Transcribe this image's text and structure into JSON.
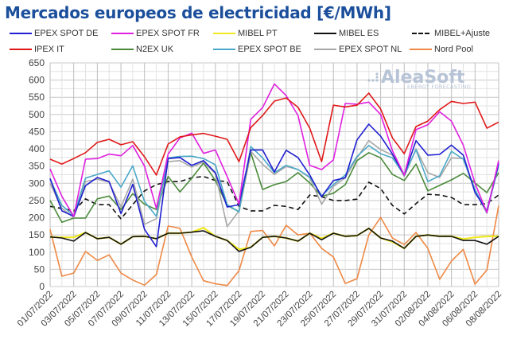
{
  "chart_data": {
    "type": "line",
    "title": "Mercados europeos de electricidad [€/MWh]",
    "xlabel": "",
    "ylabel": "",
    "ylim": [
      0,
      650
    ],
    "yticks": [
      0,
      50,
      100,
      150,
      200,
      250,
      300,
      350,
      400,
      450,
      500,
      550,
      600,
      650
    ],
    "grid": true,
    "legend_position": "top",
    "x": [
      "01/07/2022",
      "02/07/2022",
      "03/07/2022",
      "04/07/2022",
      "05/07/2022",
      "06/07/2022",
      "07/07/2022",
      "08/07/2022",
      "09/07/2022",
      "10/07/2022",
      "11/07/2022",
      "12/07/2022",
      "13/07/2022",
      "14/07/2022",
      "15/07/2022",
      "16/07/2022",
      "17/07/2022",
      "18/07/2022",
      "19/07/2022",
      "20/07/2022",
      "21/07/2022",
      "22/07/2022",
      "23/07/2022",
      "24/07/2022",
      "25/07/2022",
      "26/07/2022",
      "27/07/2022",
      "28/07/2022",
      "29/07/2022",
      "30/07/2022",
      "31/07/2022",
      "01/08/2022",
      "02/08/2022",
      "03/08/2022",
      "04/08/2022",
      "05/08/2022",
      "06/08/2022",
      "07/08/2022",
      "08/08/2022"
    ],
    "xtick_labels": [
      "01/07/2022",
      "03/07/2022",
      "05/07/2022",
      "07/07/2022",
      "09/07/2022",
      "11/07/2022",
      "13/07/2022",
      "15/07/2022",
      "17/07/2022",
      "19/07/2022",
      "21/07/2022",
      "23/07/2022",
      "25/07/2022",
      "27/07/2022",
      "29/07/2022",
      "31/07/2022",
      "02/08/2022",
      "04/08/2022",
      "06/08/2022",
      "08/08/2022"
    ],
    "series": [
      {
        "name": "EPEX SPOT DE",
        "color": "#1f1fd0",
        "dash": false,
        "values": [
          314,
          220,
          204,
          293,
          317,
          305,
          212,
          297,
          166,
          116,
          372,
          375,
          352,
          366,
          331,
          231,
          238,
          397,
          397,
          333,
          396,
          375,
          324,
          261,
          308,
          316,
          426,
          472,
          437,
          385,
          324,
          424,
          382,
          384,
          411,
          382,
          273,
          220,
          358
        ]
      },
      {
        "name": "EPEX SPOT FR",
        "color": "#e020e0",
        "dash": false,
        "values": [
          342,
          262,
          204,
          370,
          372,
          385,
          380,
          410,
          350,
          227,
          385,
          432,
          446,
          387,
          397,
          320,
          240,
          486,
          520,
          589,
          555,
          497,
          352,
          340,
          368,
          532,
          530,
          536,
          500,
          395,
          324,
          456,
          470,
          508,
          481,
          411,
          300,
          215,
          366
        ]
      },
      {
        "name": "MIBEL PT",
        "color": "#f0e820",
        "dash": false,
        "values": [
          144,
          143,
          143,
          157,
          139,
          143,
          123,
          145,
          146,
          139,
          155,
          155,
          158,
          171,
          146,
          134,
          108,
          114,
          143,
          146,
          141,
          132,
          155,
          140,
          155,
          146,
          148,
          169,
          141,
          130,
          111,
          146,
          150,
          146,
          146,
          138,
          143,
          146,
          146
        ]
      },
      {
        "name": "MIBEL ES",
        "color": "#111111",
        "dash": false,
        "values": [
          144,
          141,
          132,
          157,
          139,
          143,
          123,
          145,
          146,
          139,
          155,
          155,
          158,
          162,
          146,
          134,
          102,
          114,
          143,
          146,
          141,
          132,
          155,
          136,
          155,
          146,
          148,
          169,
          141,
          132,
          111,
          146,
          150,
          146,
          146,
          134,
          134,
          123,
          146
        ]
      },
      {
        "name": "MIBEL+Ajuste",
        "color": "#111111",
        "dash": true,
        "values": [
          233,
          227,
          220,
          255,
          238,
          238,
          197,
          238,
          278,
          296,
          305,
          305,
          316,
          320,
          308,
          305,
          233,
          220,
          220,
          236,
          233,
          224,
          266,
          261,
          250,
          250,
          254,
          303,
          285,
          236,
          211,
          241,
          268,
          266,
          259,
          238,
          238,
          241,
          266
        ]
      },
      {
        "name": "IPEX IT",
        "color": "#e01818",
        "dash": false,
        "values": [
          370,
          356,
          372,
          389,
          419,
          428,
          412,
          421,
          377,
          324,
          414,
          435,
          441,
          445,
          437,
          428,
          363,
          462,
          497,
          539,
          548,
          521,
          460,
          363,
          527,
          522,
          527,
          562,
          516,
          432,
          386,
          465,
          481,
          514,
          538,
          532,
          536,
          460,
          478
        ]
      },
      {
        "name": "N2EX UK",
        "color": "#4a8a3a",
        "dash": false,
        "values": [
          250,
          187,
          199,
          199,
          255,
          263,
          224,
          270,
          239,
          224,
          320,
          275,
          315,
          359,
          308,
          236,
          218,
          389,
          282,
          296,
          305,
          331,
          301,
          262,
          271,
          296,
          366,
          389,
          374,
          326,
          308,
          356,
          278,
          294,
          310,
          329,
          301,
          273,
          331
        ]
      },
      {
        "name": "EPEX SPOT BE",
        "color": "#4aa8c8",
        "dash": false,
        "values": [
          312,
          236,
          206,
          315,
          326,
          336,
          289,
          351,
          247,
          204,
          374,
          378,
          379,
          372,
          354,
          238,
          217,
          407,
          374,
          331,
          352,
          340,
          318,
          264,
          296,
          324,
          378,
          410,
          386,
          374,
          324,
          398,
          305,
          322,
          393,
          370,
          282,
          215,
          354
        ]
      },
      {
        "name": "EPEX SPOT NL",
        "color": "#a8a8a8",
        "dash": false,
        "values": [
          300,
          227,
          201,
          305,
          312,
          303,
          231,
          312,
          181,
          197,
          363,
          366,
          347,
          362,
          328,
          174,
          220,
          393,
          355,
          326,
          349,
          340,
          316,
          239,
          291,
          316,
          374,
          424,
          398,
          382,
          320,
          400,
          331,
          317,
          374,
          372,
          278,
          213,
          366
        ]
      },
      {
        "name": "Nord Pool",
        "color": "#ee8844",
        "dash": false,
        "values": [
          166,
          30,
          39,
          102,
          76,
          92,
          39,
          19,
          4,
          35,
          176,
          169,
          86,
          17,
          8,
          3,
          46,
          160,
          163,
          118,
          178,
          150,
          155,
          111,
          86,
          9,
          23,
          150,
          201,
          141,
          122,
          157,
          111,
          21,
          74,
          108,
          7,
          48,
          235
        ]
      }
    ]
  },
  "legend": {
    "row1": [
      "EPEX SPOT DE",
      "EPEX SPOT FR",
      "MIBEL PT",
      "MIBEL ES",
      "MIBEL+Ajuste"
    ],
    "row2": [
      "IPEX IT",
      "N2EX UK",
      "EPEX SPOT BE",
      "EPEX SPOT NL",
      "Nord Pool"
    ]
  },
  "logo": {
    "name": "AleaSoft",
    "tagline": "ENERGY FORECASTING"
  }
}
